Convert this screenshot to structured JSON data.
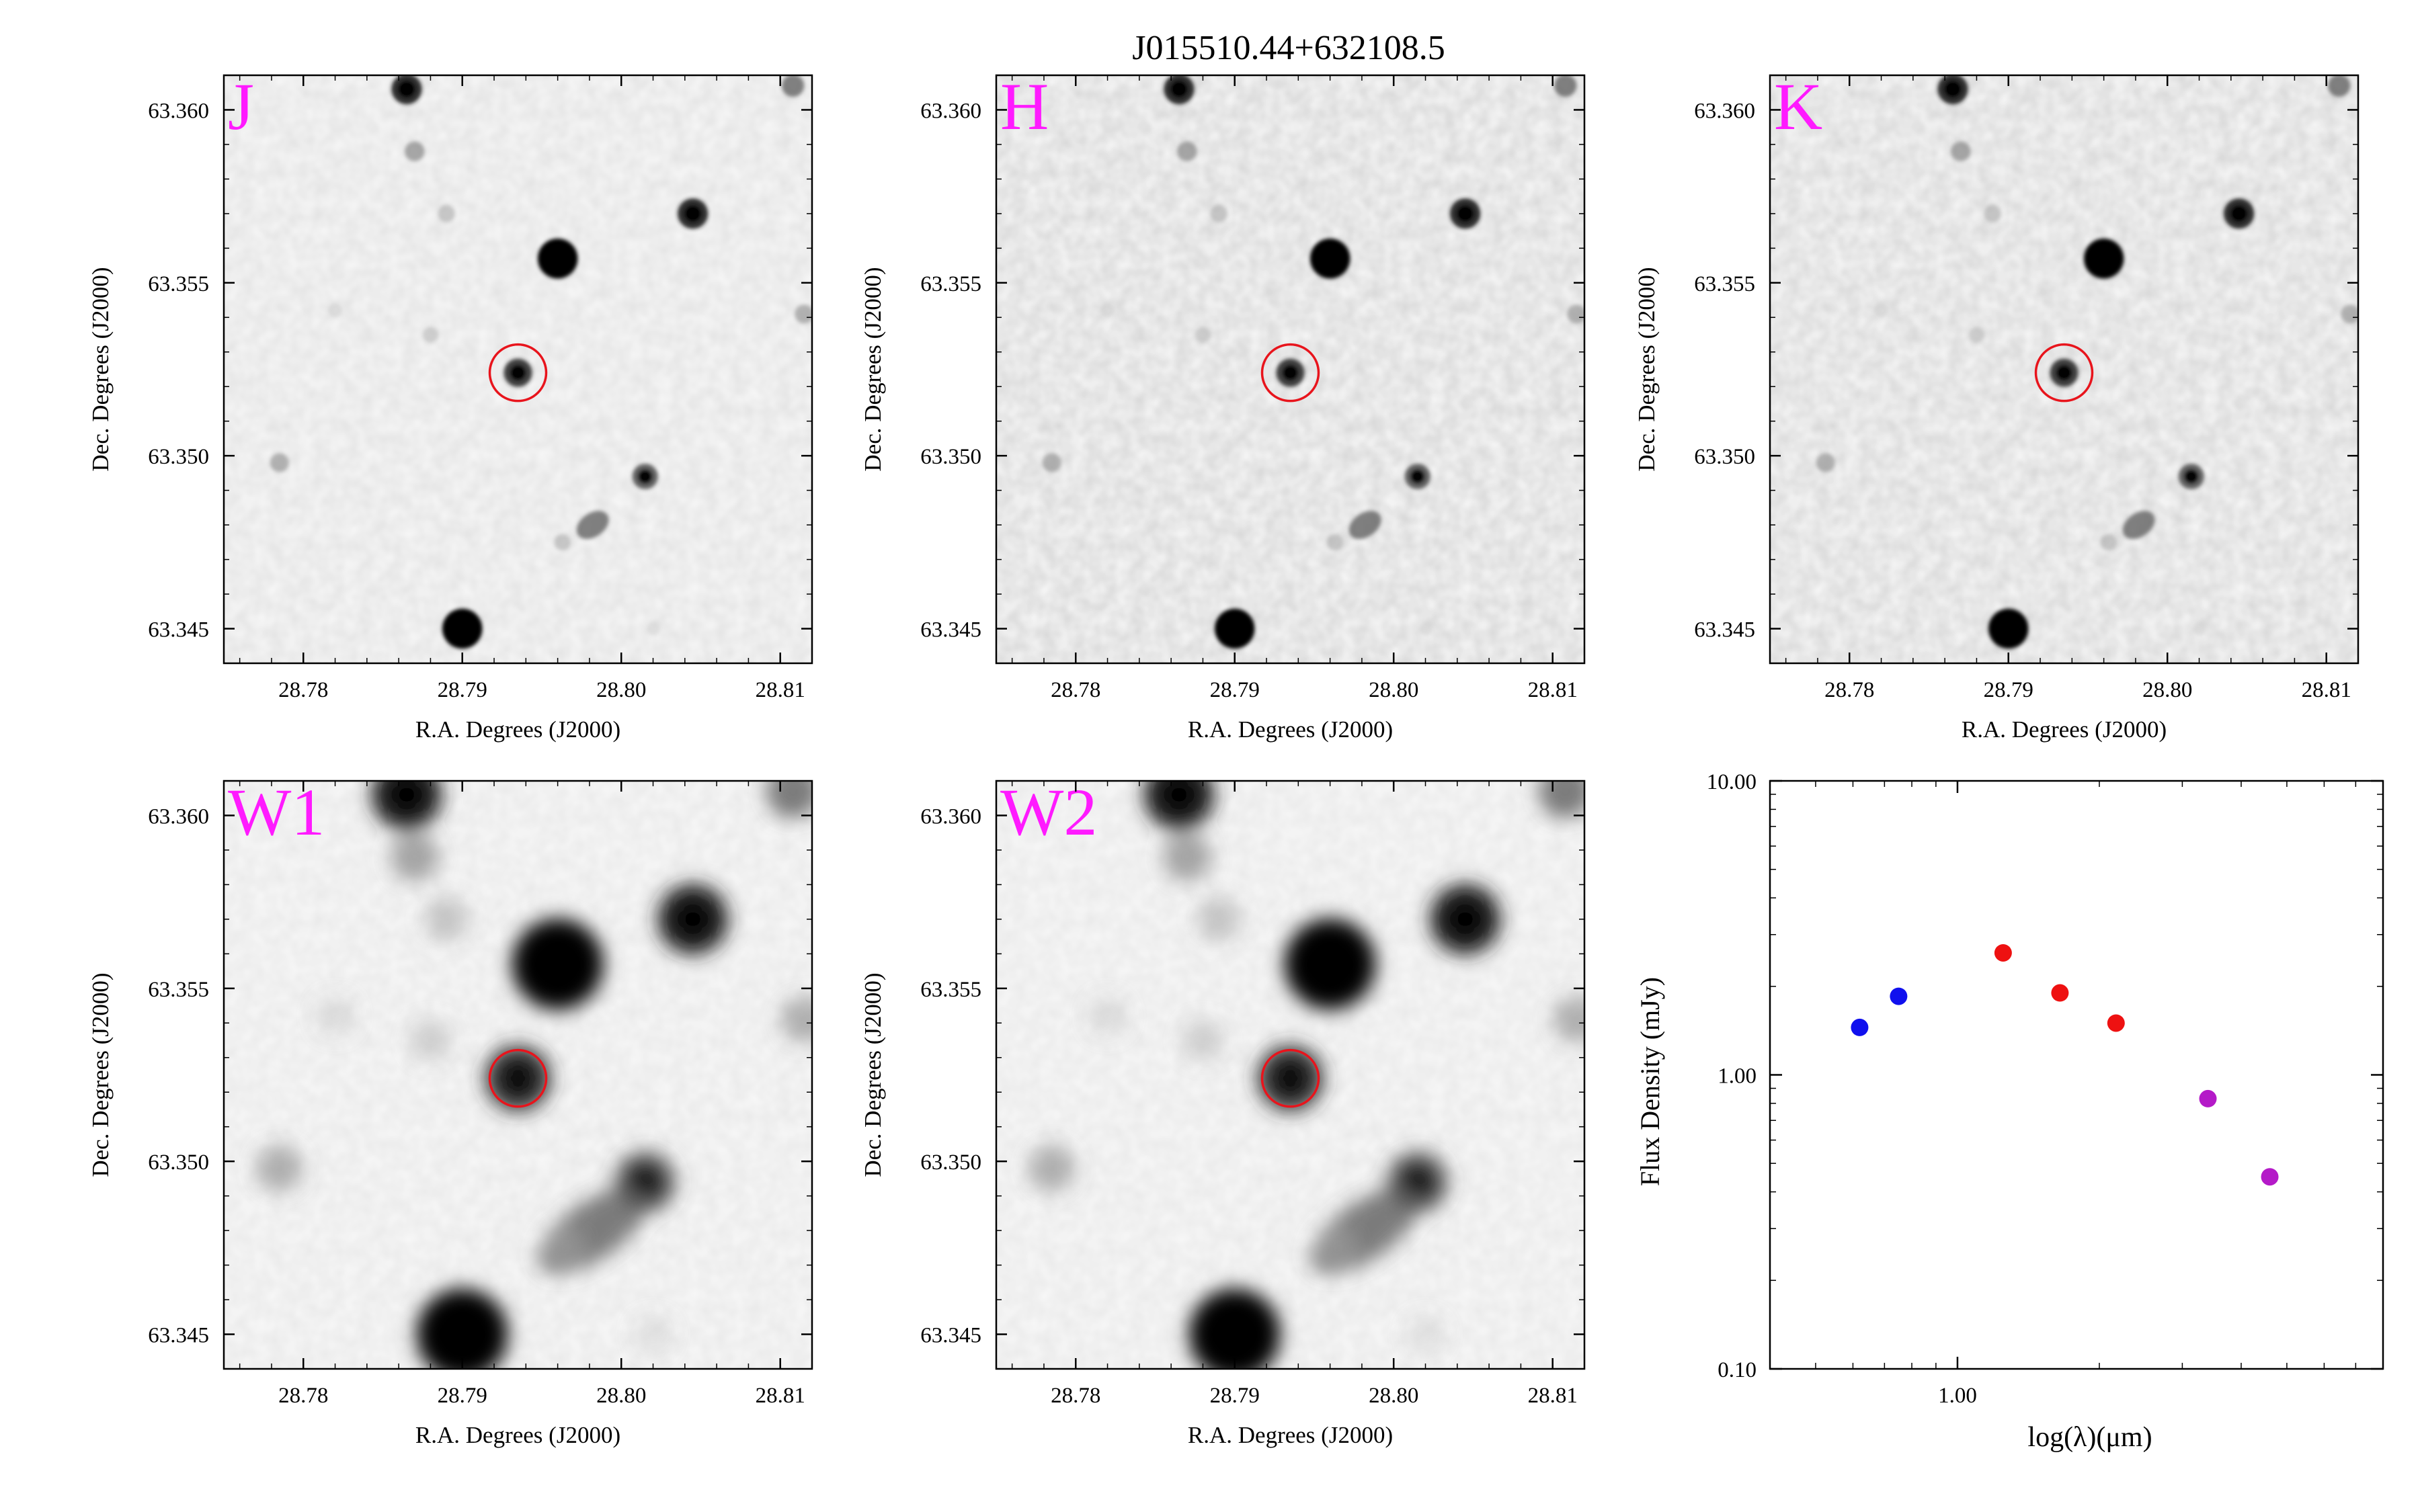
{
  "figure": {
    "title": "J015510.44+632108.5"
  },
  "colors": {
    "band_label": "#ff1aff",
    "target_circle": "#e8141c",
    "axis": "#000000",
    "optical_points": "#1010ee",
    "nir_points": "#ee1111",
    "wise_points": "#b41ac8"
  },
  "cutouts": {
    "xlabel": "R.A. Degrees (J2000)",
    "ylabel": "Dec. Degrees (J2000)",
    "x_ticks": [
      "28.78",
      "28.79",
      "28.80",
      "28.81"
    ],
    "y_ticks": [
      "63.360",
      "63.355",
      "63.350",
      "63.345"
    ],
    "panels": [
      {
        "band": "J"
      },
      {
        "band": "H"
      },
      {
        "band": "K"
      },
      {
        "band": "W1"
      },
      {
        "band": "W2"
      }
    ]
  },
  "chart_data": {
    "type": "scatter",
    "title": "",
    "xlabel": "log(λ)(μm)",
    "ylabel": "Flux Density (mJy)",
    "x_scale": "log",
    "y_scale": "log",
    "xlim": [
      0.4,
      8
    ],
    "ylim": [
      0.1,
      10
    ],
    "x_tick_labels": [
      "1.00"
    ],
    "y_tick_labels": [
      "10.00",
      "1.00",
      "0.10"
    ],
    "series": [
      {
        "color": "#1010ee",
        "points": [
          {
            "x": 0.62,
            "y": 1.45
          },
          {
            "x": 0.75,
            "y": 1.85
          }
        ]
      },
      {
        "color": "#ee1111",
        "points": [
          {
            "x": 1.25,
            "y": 2.6
          },
          {
            "x": 1.65,
            "y": 1.9
          },
          {
            "x": 2.17,
            "y": 1.5
          }
        ]
      },
      {
        "color": "#b41ac8",
        "points": [
          {
            "x": 3.4,
            "y": 0.83
          },
          {
            "x": 4.6,
            "y": 0.45
          }
        ]
      }
    ]
  }
}
